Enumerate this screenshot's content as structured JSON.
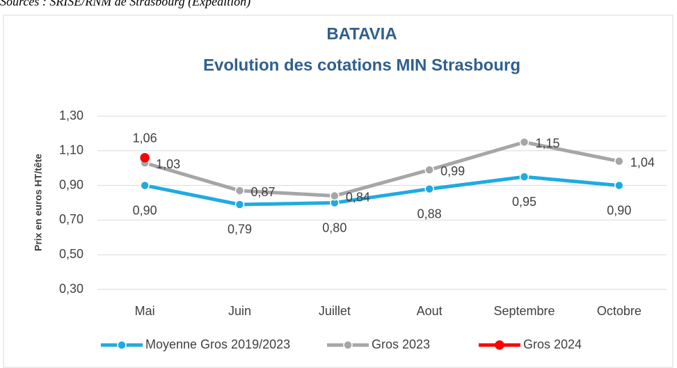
{
  "source": "Sources : SRISE/RNM de Strasbourg (Expédition)",
  "chart_data": {
    "type": "line",
    "title": "BATAVIA",
    "subtitle": "Evolution des cotations MIN Strasbourg",
    "y_label": "Prix en euros HT/tête",
    "categories": [
      "Mai",
      "Juin",
      "Juillet",
      "Aout",
      "Septembre",
      "Octobre"
    ],
    "series": [
      {
        "name": "Moyenne Gros 2019/2023",
        "color": "#1fabe0",
        "label_color": "#1aa7dc",
        "values": [
          0.9,
          0.79,
          0.8,
          0.88,
          0.95,
          0.9
        ],
        "value_labels": [
          "0,90",
          "0,79",
          "0,80",
          "0,88",
          "0,95",
          "0,90"
        ]
      },
      {
        "name": "Gros 2023",
        "color": "#a6a6a6",
        "label_color": "#404040",
        "values": [
          1.03,
          0.87,
          0.84,
          0.99,
          1.15,
          1.04
        ],
        "value_labels": [
          "1,03",
          "0,87",
          "0,84",
          "0,99",
          "1,15",
          "1,04"
        ]
      },
      {
        "name": "Gros 2024",
        "color": "#ff0000",
        "label_color": "#e00000",
        "values": [
          1.06,
          null,
          null,
          null,
          null,
          null
        ],
        "value_labels": [
          "1,06",
          null,
          null,
          null,
          null,
          null
        ]
      }
    ],
    "ylim": [
      0.3,
      1.3
    ],
    "yticks": [
      {
        "value": 0.3,
        "label": "0,30"
      },
      {
        "value": 0.5,
        "label": "0,50"
      },
      {
        "value": 0.7,
        "label": "0,70"
      },
      {
        "value": 0.9,
        "label": "0,90"
      },
      {
        "value": 1.1,
        "label": "1,10"
      },
      {
        "value": 1.3,
        "label": "1,30"
      }
    ],
    "grid": true,
    "legend": "bottom"
  }
}
